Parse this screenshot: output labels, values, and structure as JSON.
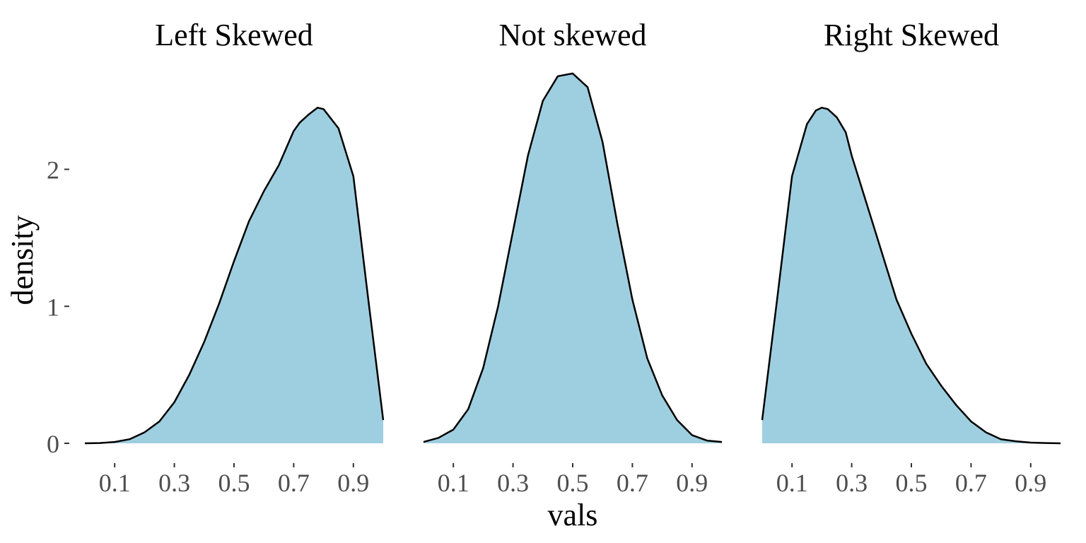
{
  "chart_data": {
    "type": "area",
    "xlabel": "vals",
    "ylabel": "density",
    "ylim": [
      0,
      2.72
    ],
    "xlim": [
      0,
      1
    ],
    "x_ticks": [
      "0.1",
      "0.3",
      "0.5",
      "0.7",
      "0.9"
    ],
    "x_tick_values": [
      0.1,
      0.3,
      0.5,
      0.7,
      0.9
    ],
    "y_ticks": [
      "0",
      "1",
      "2"
    ],
    "y_tick_values": [
      0,
      1,
      2
    ],
    "grid": false,
    "fill_color": "#9ecfe0",
    "line_color": "#000000",
    "panels": [
      {
        "title": "Left Skewed",
        "x": [
          0.0,
          0.05,
          0.1,
          0.15,
          0.2,
          0.25,
          0.3,
          0.35,
          0.4,
          0.45,
          0.5,
          0.55,
          0.6,
          0.65,
          0.7,
          0.72,
          0.75,
          0.78,
          0.8,
          0.85,
          0.9,
          0.95,
          1.0
        ],
        "y": [
          0.0,
          0.002,
          0.01,
          0.03,
          0.08,
          0.16,
          0.3,
          0.5,
          0.74,
          1.02,
          1.33,
          1.62,
          1.84,
          2.03,
          2.28,
          2.34,
          2.4,
          2.45,
          2.44,
          2.3,
          1.95,
          1.05,
          0.17
        ]
      },
      {
        "title": "Not skewed",
        "x": [
          0.0,
          0.05,
          0.1,
          0.15,
          0.2,
          0.25,
          0.3,
          0.35,
          0.4,
          0.45,
          0.5,
          0.55,
          0.6,
          0.65,
          0.7,
          0.75,
          0.8,
          0.85,
          0.9,
          0.95,
          1.0
        ],
        "y": [
          0.01,
          0.04,
          0.1,
          0.25,
          0.55,
          1.0,
          1.55,
          2.1,
          2.5,
          2.68,
          2.7,
          2.6,
          2.2,
          1.6,
          1.05,
          0.62,
          0.35,
          0.17,
          0.06,
          0.02,
          0.01
        ]
      },
      {
        "title": "Right Skewed",
        "x": [
          0.0,
          0.05,
          0.1,
          0.15,
          0.18,
          0.2,
          0.22,
          0.25,
          0.28,
          0.3,
          0.35,
          0.4,
          0.45,
          0.5,
          0.55,
          0.6,
          0.65,
          0.7,
          0.75,
          0.8,
          0.85,
          0.9,
          0.95,
          1.0
        ],
        "y": [
          0.17,
          1.05,
          1.95,
          2.33,
          2.43,
          2.45,
          2.44,
          2.38,
          2.27,
          2.1,
          1.75,
          1.4,
          1.05,
          0.8,
          0.58,
          0.42,
          0.28,
          0.16,
          0.08,
          0.03,
          0.015,
          0.005,
          0.002,
          0.0
        ]
      }
    ]
  }
}
